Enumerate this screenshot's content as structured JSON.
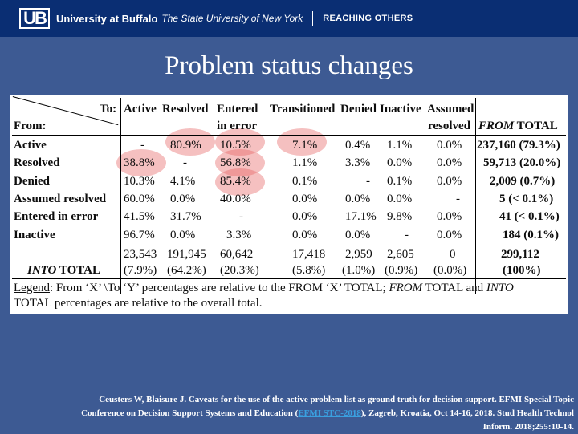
{
  "header": {
    "logo": "UB",
    "university": "University at Buffalo",
    "subtitle": "The State University of New York",
    "slogan": "REACHING OTHERS"
  },
  "slide": {
    "title": "Problem status changes"
  },
  "table": {
    "to_label": "To:",
    "from_label": "From:",
    "columns": [
      {
        "line1": "Active",
        "line2": ""
      },
      {
        "line1": "Resolved",
        "line2": ""
      },
      {
        "line1": "Entered",
        "line2": "in error"
      },
      {
        "line1": "Transitioned",
        "line2": ""
      },
      {
        "line1": "Denied",
        "line2": ""
      },
      {
        "line1": "Inactive",
        "line2": ""
      },
      {
        "line1": "Assumed",
        "line2": "resolved"
      }
    ],
    "from_total_label_italic": "FROM",
    "from_total_label": "TOTAL",
    "rows": [
      {
        "label": "Active",
        "values": [
          "-",
          "80.9%",
          "10.5%",
          "7.1%",
          "0.4%",
          "1.1%",
          "0.0%"
        ],
        "total": "237,160 (79.3%)"
      },
      {
        "label": "Resolved",
        "values": [
          "38.8%",
          "-",
          "56.8%",
          "1.1%",
          "3.3%",
          "0.0%",
          "0.0%"
        ],
        "total": "59,713 (20.0%)"
      },
      {
        "label": "Denied",
        "values": [
          "10.3%",
          "4.1%",
          "85.4%",
          "0.1%",
          "-",
          "0.1%",
          "0.0%"
        ],
        "total": "2,009 (0.7%)"
      },
      {
        "label": "Assumed resolved",
        "values": [
          "60.0%",
          "0.0%",
          "40.0%",
          "0.0%",
          "0.0%",
          "0.0%",
          "-"
        ],
        "total": "5 (< 0.1%)"
      },
      {
        "label": "Entered in error",
        "values": [
          "41.5%",
          "31.7%",
          "-",
          "0.0%",
          "17.1%",
          "9.8%",
          "0.0%"
        ],
        "total": "41 (< 0.1%)"
      },
      {
        "label": "Inactive",
        "values": [
          "96.7%",
          "0.0%",
          "3.3%",
          "0.0%",
          "0.0%",
          "-",
          "0.0%"
        ],
        "total": "184 (0.1%)"
      }
    ],
    "into_total": {
      "label_italic": "INTO",
      "label": "TOTAL",
      "counts": [
        "23,543",
        "191,945",
        "60,642",
        "17,418",
        "2,959",
        "2,605",
        "0"
      ],
      "percents": [
        "(7.9%)",
        "(64.2%)",
        "(20.3%)",
        "(5.8%)",
        "(1.0%)",
        "(0.9%)",
        "(0.0%)"
      ],
      "grand_total": "299,112",
      "grand_percent": "(100%)"
    },
    "legend": {
      "label": "Legend",
      "text1": ": From ‘X’ \\To ‘Y’ percentages are relative to the FROM ‘X’ TOTAL; ",
      "italic1": "FROM",
      "text2": " TOTAL and ",
      "italic2": "INTO",
      "text3": "TOTAL percentages are relative to the overall total."
    },
    "highlight_color": "#e65a5a"
  },
  "citation": {
    "line1": "Ceusters W, Blaisure J. Caveats for the use of the active problem list as ground truth for decision support. EFMI Special Topic",
    "line2_pre": "Conference on Decision Support Systems and Education (",
    "line2_link": "EFMI STC-2018",
    "line2_post": "), Zagreb, Kroatia, Oct 14-16, 2018. Stud Health Technol",
    "line3": "Inform. 2018;255:10-14."
  }
}
